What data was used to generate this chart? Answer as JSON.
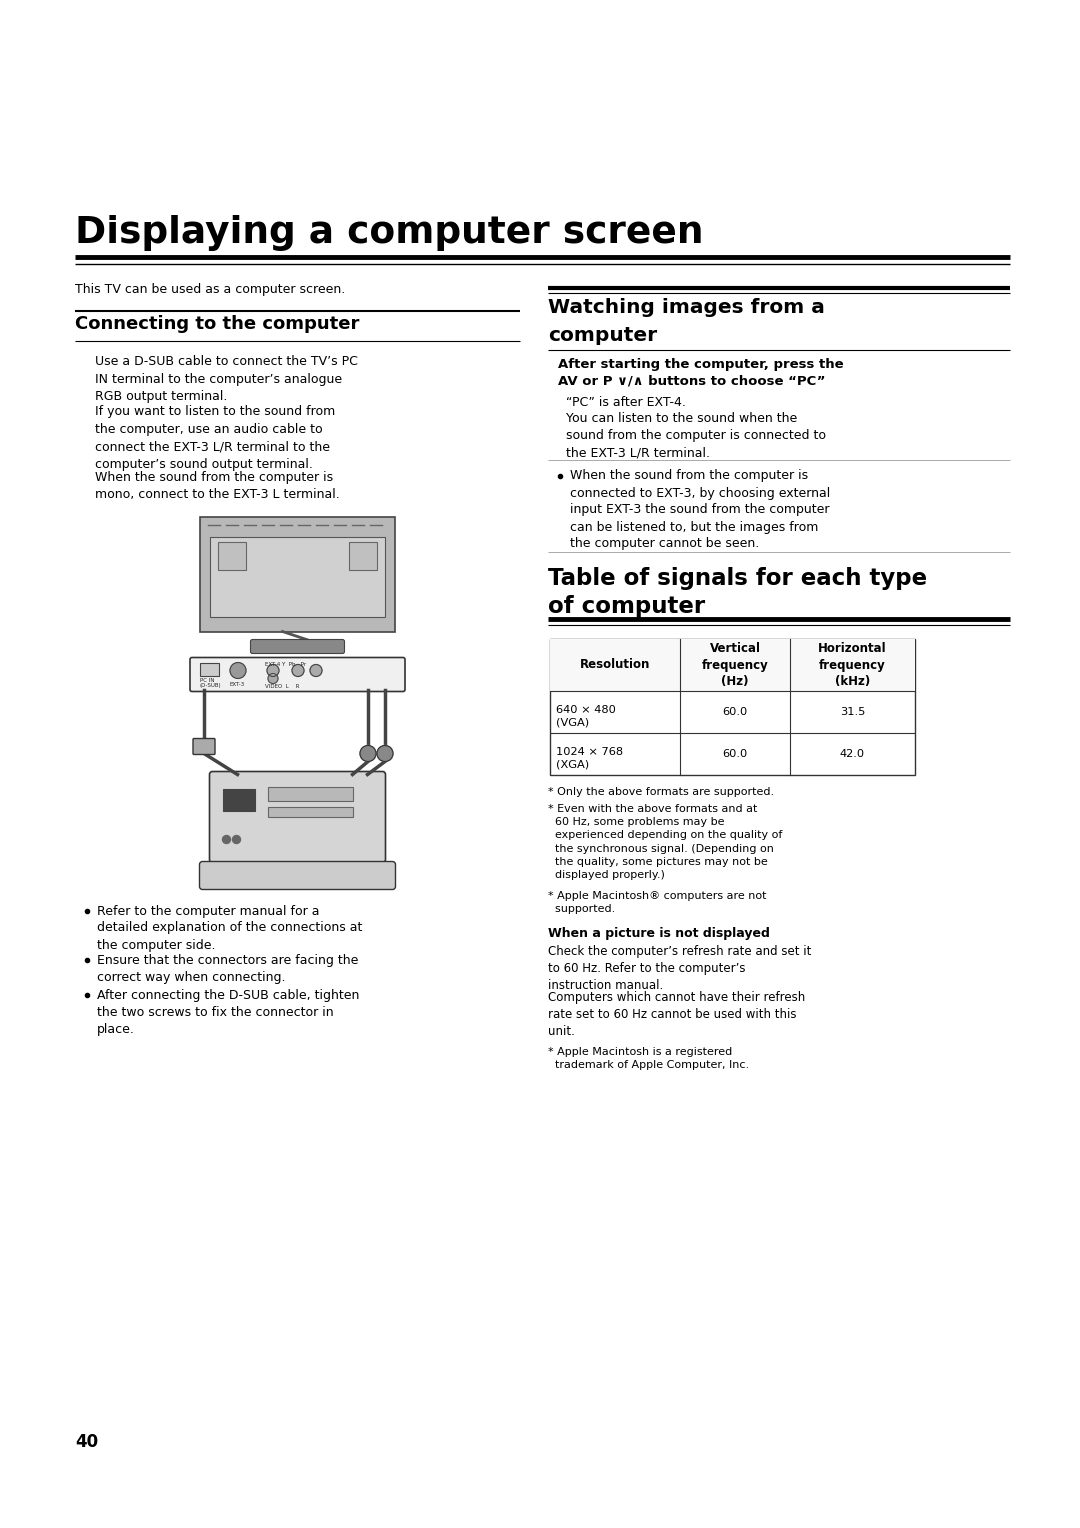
{
  "page_bg": "#ffffff",
  "page_number": "40",
  "main_title": "Displaying a computer screen",
  "intro_text": "This TV can be used as a computer screen.",
  "left_section_title": "Connecting to the computer",
  "left_body": [
    "Use a D-SUB cable to connect the TV’s PC IN terminal to the computer’s analogue RGB output terminal.",
    "If you want to listen to the sound from the computer, use an audio cable to connect the EXT-3 L/R terminal to the computer’s sound output terminal.",
    "When the sound from the computer is mono, connect to the EXT-3 L terminal."
  ],
  "left_bullets": [
    "Refer to the computer manual for a detailed explanation of the connections at the computer side.",
    "Ensure that the connectors are facing the correct way when connecting.",
    "After connecting the D-SUB cable, tighten the two screws to fix the connector in place."
  ],
  "right_section_title1": "Watching images from a",
  "right_section_title2": "computer",
  "right_subsection_title_line1": "After starting the computer, press the",
  "right_subsection_title_line2": "AV or P ∨/∧ buttons to choose “PC”",
  "right_subsection_body1": "“PC” is after EXT-4.",
  "right_subsection_body2": "You can listen to the sound when the sound from the computer is connected to the EXT-3 L/R terminal.",
  "right_bullet": "When the sound from the computer is connected to EXT-3, by choosing external input EXT-3 the sound from the computer can be listened to, but the images from the computer cannot be seen.",
  "table_section_title1": "Table of signals for each type",
  "table_section_title2": "of computer",
  "table_headers": [
    "Resolution",
    "Vertical\nfrequency\n(Hz)",
    "Horizontal\nfrequency\n(kHz)"
  ],
  "table_rows": [
    [
      "640 × 480\n(VGA)",
      "60.0",
      "31.5"
    ],
    [
      "1024 × 768\n(XGA)",
      "60.0",
      "42.0"
    ]
  ],
  "table_note1": "* Only the above formats are supported.",
  "table_note2": "* Even with the above formats and at\n  60 Hz, some problems may be\n  experienced depending on the quality of\n  the synchronous signal. (Depending on\n  the quality, some pictures may not be\n  displayed properly.)",
  "table_note3": "* Apple Macintosh® computers are not\n  supported.",
  "when_title": "When a picture is not displayed",
  "when_body1": "Check the computer’s refresh rate and set it to 60 Hz. Refer to the computer’s instruction manual.",
  "when_body2": "Computers which cannot have their refresh rate set to 60 Hz cannot be used with this unit.",
  "footnote": "* Apple Macintosh is a registered\n  trademark of Apple Computer, Inc."
}
